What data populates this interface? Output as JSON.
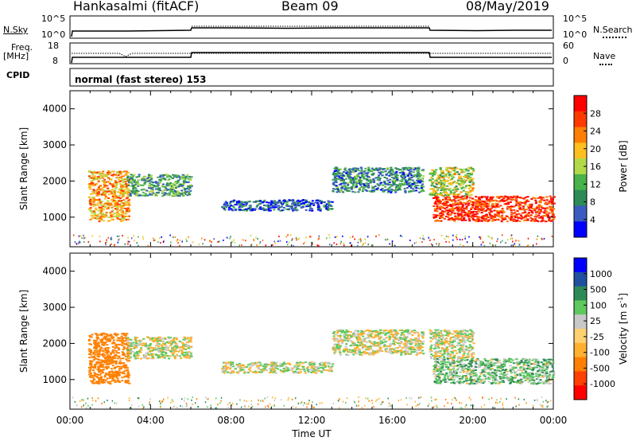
{
  "header": {
    "station": "Hankasalmi (fitACF)",
    "beam": "Beam 09",
    "date": "08/May/2019"
  },
  "strip_labels": {
    "nsky": "N.Sky",
    "nsearch": "N.Search",
    "freq_line1": "Freq.",
    "freq_line2": "[MHz]",
    "nave": "Nave",
    "cpid": "CPID",
    "cpid_value": "normal (fast stereo) 153",
    "noise_ticks": [
      "10^5",
      "10^0"
    ],
    "freq_ticks": [
      "18",
      "8"
    ],
    "nave_ticks": [
      "60",
      "0"
    ]
  },
  "colors": {
    "power": [
      "#0000ff",
      "#3a5cc0",
      "#2e8b57",
      "#49b24a",
      "#b2d94a",
      "#ffbf1f",
      "#ff7f00",
      "#ff3a00",
      "#ff0000"
    ],
    "velocity": [
      "#ff0000",
      "#ff4000",
      "#ff8000",
      "#ffb030",
      "#ffd070",
      "#c8c8c8",
      "#5fc85f",
      "#2e8b57",
      "#2050a0",
      "#0000ff"
    ]
  },
  "chart_data": [
    {
      "type": "heatmap",
      "panel": "power",
      "ylabel": "Slant Range [km]",
      "yticks": [
        "4000",
        "3000",
        "2000",
        "1000"
      ],
      "ylim": [
        180,
        4500
      ],
      "colorbar_label": "Power [dB]",
      "colorbar_ticks": [
        "28",
        "24",
        "20",
        "16",
        "12",
        "8",
        "4"
      ],
      "colorbar_range": [
        0,
        30
      ],
      "xlim": [
        0,
        24
      ],
      "echo_regions": [
        {
          "t": [
            0.9,
            2.9
          ],
          "r": [
            900,
            2300
          ],
          "value": 20
        },
        {
          "t": [
            2.8,
            6.0
          ],
          "r": [
            1600,
            2200
          ],
          "value": 10
        },
        {
          "t": [
            7.5,
            13.0
          ],
          "r": [
            1200,
            1500
          ],
          "value": 5
        },
        {
          "t": [
            13.0,
            17.5
          ],
          "r": [
            1700,
            2400
          ],
          "value": 8
        },
        {
          "t": [
            17.8,
            20.0
          ],
          "r": [
            1600,
            2400
          ],
          "value": 15
        },
        {
          "t": [
            18.0,
            24.0
          ],
          "r": [
            900,
            1600
          ],
          "value": 26
        }
      ]
    },
    {
      "type": "heatmap",
      "panel": "velocity",
      "ylabel": "Slant Range [km]",
      "yticks": [
        "4000",
        "3000",
        "2000",
        "1000"
      ],
      "ylim": [
        180,
        4500
      ],
      "colorbar_label": "Velocity [m s",
      "colorbar_label_sup": "-1",
      "colorbar_label_end": "]",
      "colorbar_ticks": [
        "1000",
        "500",
        "100",
        "25",
        "-25",
        "-100",
        "-500",
        "-1000"
      ],
      "xlabel": "Time UT",
      "xticks": [
        "00:00",
        "04:00",
        "08:00",
        "12:00",
        "16:00",
        "20:00",
        "00:00"
      ],
      "xlim": [
        0,
        24
      ],
      "echo_regions": [
        {
          "t": [
            0.9,
            2.9
          ],
          "r": [
            900,
            2300
          ],
          "value": -300
        },
        {
          "t": [
            2.8,
            6.0
          ],
          "r": [
            1600,
            2200
          ],
          "value": 0
        },
        {
          "t": [
            7.5,
            13.0
          ],
          "r": [
            1200,
            1500
          ],
          "value": 0
        },
        {
          "t": [
            13.0,
            17.5
          ],
          "r": [
            1700,
            2400
          ],
          "value": 0
        },
        {
          "t": [
            17.8,
            20.0
          ],
          "r": [
            1600,
            2400
          ],
          "value": 0
        },
        {
          "t": [
            18.0,
            24.0
          ],
          "r": [
            900,
            1600
          ],
          "value": 60
        }
      ]
    }
  ]
}
